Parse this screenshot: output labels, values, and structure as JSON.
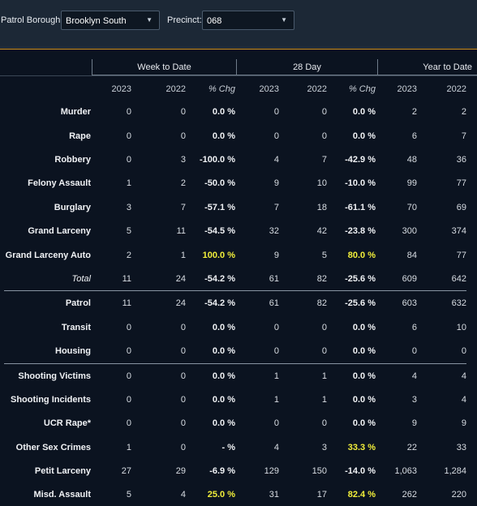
{
  "filters": {
    "borough_label": "Patrol Borough:",
    "borough_value": "Brooklyn South",
    "precinct_label": "Precinct:",
    "precinct_value": "068"
  },
  "groups": [
    "Week to Date",
    "28 Day",
    "Year to Date"
  ],
  "columns": [
    "2023",
    "2022",
    "% Chg",
    "2023",
    "2022",
    "% Chg",
    "2023",
    "2022"
  ],
  "rows": [
    {
      "label": "Murder",
      "v": [
        "0",
        "0",
        "0.0 %",
        "0",
        "0",
        "0.0 %",
        "2",
        "2"
      ]
    },
    {
      "label": "Rape",
      "v": [
        "0",
        "0",
        "0.0 %",
        "0",
        "0",
        "0.0 %",
        "6",
        "7"
      ]
    },
    {
      "label": "Robbery",
      "v": [
        "0",
        "3",
        "-100.0 %",
        "4",
        "7",
        "-42.9 %",
        "48",
        "36"
      ]
    },
    {
      "label": "Felony Assault",
      "v": [
        "1",
        "2",
        "-50.0 %",
        "9",
        "10",
        "-10.0 %",
        "99",
        "77"
      ]
    },
    {
      "label": "Burglary",
      "v": [
        "3",
        "7",
        "-57.1 %",
        "7",
        "18",
        "-61.1 %",
        "70",
        "69"
      ]
    },
    {
      "label": "Grand Larceny",
      "v": [
        "5",
        "11",
        "-54.5 %",
        "32",
        "42",
        "-23.8 %",
        "300",
        "374"
      ]
    },
    {
      "label": "Grand Larceny Auto",
      "v": [
        "2",
        "1",
        "100.0 %",
        "9",
        "5",
        "80.0 %",
        "84",
        "77"
      ]
    },
    {
      "label": "Total",
      "v": [
        "11",
        "24",
        "-54.2 %",
        "61",
        "82",
        "-25.6 %",
        "609",
        "642"
      ]
    },
    {
      "label": "Patrol",
      "v": [
        "11",
        "24",
        "-54.2 %",
        "61",
        "82",
        "-25.6 %",
        "603",
        "632"
      ]
    },
    {
      "label": "Transit",
      "v": [
        "0",
        "0",
        "0.0 %",
        "0",
        "0",
        "0.0 %",
        "6",
        "10"
      ]
    },
    {
      "label": "Housing",
      "v": [
        "0",
        "0",
        "0.0 %",
        "0",
        "0",
        "0.0 %",
        "0",
        "0"
      ]
    },
    {
      "label": "Shooting Victims",
      "v": [
        "0",
        "0",
        "0.0 %",
        "1",
        "1",
        "0.0 %",
        "4",
        "4"
      ]
    },
    {
      "label": "Shooting Incidents",
      "v": [
        "0",
        "0",
        "0.0 %",
        "1",
        "1",
        "0.0 %",
        "3",
        "4"
      ]
    },
    {
      "label": "UCR Rape*",
      "v": [
        "0",
        "0",
        "0.0 %",
        "0",
        "0",
        "0.0 %",
        "9",
        "9"
      ]
    },
    {
      "label": "Other Sex Crimes",
      "v": [
        "1",
        "0",
        "- %",
        "4",
        "3",
        "33.3 %",
        "22",
        "33"
      ]
    },
    {
      "label": "Petit Larceny",
      "v": [
        "27",
        "29",
        "-6.9 %",
        "129",
        "150",
        "-14.0 %",
        "1,063",
        "1,284"
      ]
    },
    {
      "label": "Misd. Assault",
      "v": [
        "5",
        "4",
        "25.0 %",
        "31",
        "17",
        "82.4 %",
        "262",
        "220"
      ]
    }
  ],
  "colors": {
    "accent": "#d89b2a",
    "highlight": "#f2ef3a",
    "background": "#0b1320"
  }
}
